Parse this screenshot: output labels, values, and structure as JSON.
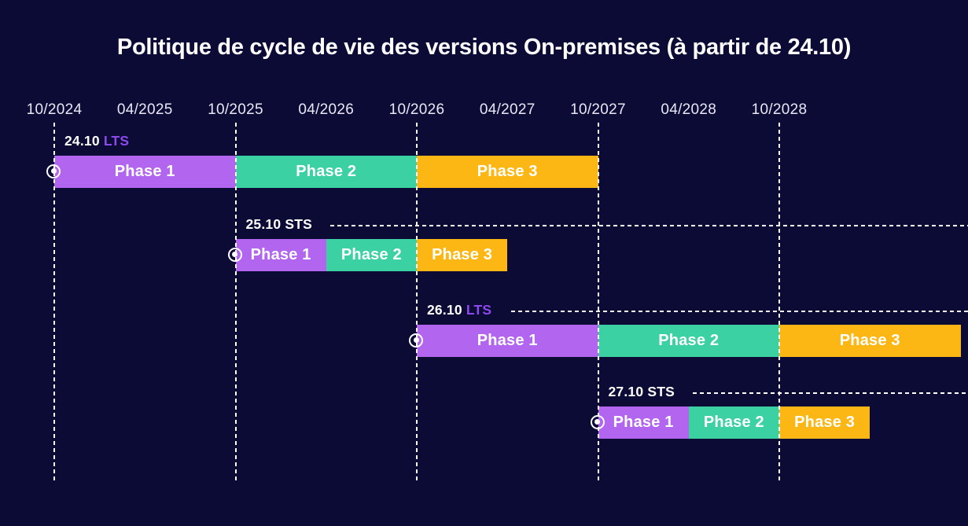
{
  "colors": {
    "background": "#0b0b36",
    "grid": "#ffffff",
    "title_text": "#ffffff",
    "axis_text": "#e9e7f3",
    "bar_text": "#ffffff",
    "version_text": "#ffffff",
    "channel_colors": {
      "LTS": "#8e49ec",
      "STS": "#ffffff"
    },
    "phase_colors": {
      "Phase 1": "#b266f0",
      "Phase 2": "#3bd1a2",
      "Phase 3": "#fdb714"
    },
    "marker": "#ffffff"
  },
  "chart_data": {
    "type": "gantt",
    "title": "Politique de cycle de vie des versions On-premises (à partir de 24.10)",
    "x_axis_unit": "month/year",
    "x_ticks": [
      "10/2024",
      "04/2025",
      "10/2025",
      "04/2026",
      "10/2026",
      "04/2027",
      "10/2027",
      "04/2028",
      "10/2028"
    ],
    "x_gridlines": [
      "10/2024",
      "10/2025",
      "10/2026",
      "10/2027",
      "10/2028"
    ],
    "x_range": [
      "10/2024",
      "10/2029"
    ],
    "grid_style": "dashed-vertical-at-october-ticks",
    "rows": [
      {
        "version": "24.10",
        "channel": "LTS",
        "dash_line": false,
        "phases": [
          {
            "name": "Phase 1",
            "start": "10/2024",
            "end": "10/2025"
          },
          {
            "name": "Phase 2",
            "start": "10/2025",
            "end": "10/2026"
          },
          {
            "name": "Phase 3",
            "start": "10/2026",
            "end": "10/2027"
          }
        ]
      },
      {
        "version": "25.10",
        "channel": "STS",
        "dash_line": true,
        "phases": [
          {
            "name": "Phase 1",
            "start": "10/2025",
            "end": "04/2026"
          },
          {
            "name": "Phase 2",
            "start": "04/2026",
            "end": "10/2026"
          },
          {
            "name": "Phase 3",
            "start": "10/2026",
            "end": "04/2027"
          }
        ]
      },
      {
        "version": "26.10",
        "channel": "LTS",
        "dash_line": true,
        "phases": [
          {
            "name": "Phase 1",
            "start": "10/2026",
            "end": "10/2027"
          },
          {
            "name": "Phase 2",
            "start": "10/2027",
            "end": "10/2028"
          },
          {
            "name": "Phase 3",
            "start": "10/2028",
            "end": "10/2029"
          }
        ]
      },
      {
        "version": "27.10",
        "channel": "STS",
        "dash_line": true,
        "phases": [
          {
            "name": "Phase 1",
            "start": "10/2027",
            "end": "04/2028"
          },
          {
            "name": "Phase 2",
            "start": "04/2028",
            "end": "10/2028"
          },
          {
            "name": "Phase 3",
            "start": "10/2028",
            "end": "04/2029"
          }
        ]
      }
    ]
  }
}
